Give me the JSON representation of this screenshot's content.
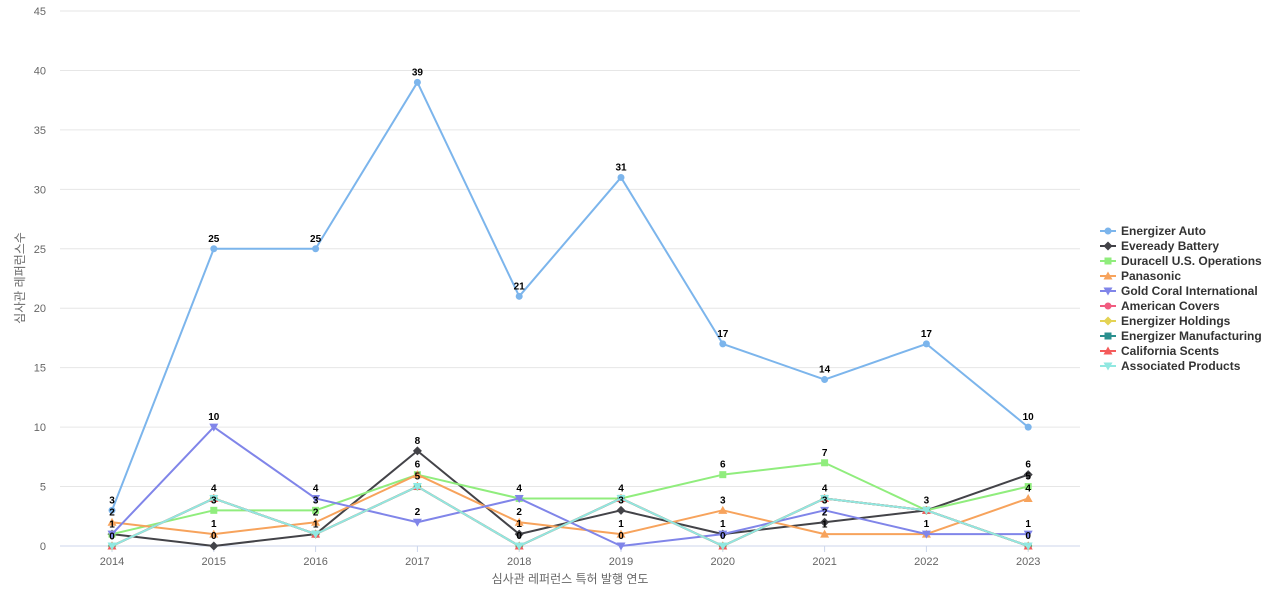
{
  "chart_data": {
    "type": "line",
    "xlabel": "심사관 레퍼런스 특허 발행 연도",
    "ylabel": "심사관 레퍼런스수",
    "x": [
      "2014",
      "2015",
      "2016",
      "2017",
      "2018",
      "2019",
      "2020",
      "2021",
      "2022",
      "2023"
    ],
    "ylim": [
      0,
      45
    ],
    "yticks": [
      0,
      5,
      10,
      15,
      20,
      25,
      30,
      35,
      40,
      45
    ],
    "grid": true,
    "legend_position": "right",
    "series": [
      {
        "name": "Energizer Auto",
        "color": "#7cb5ec",
        "marker": "circle",
        "values": [
          3,
          25,
          25,
          39,
          21,
          31,
          17,
          14,
          17,
          10
        ]
      },
      {
        "name": "Eveready Battery",
        "color": "#434348",
        "marker": "diamond",
        "values": [
          1,
          0,
          1,
          8,
          1,
          3,
          1,
          2,
          3,
          6
        ]
      },
      {
        "name": "Duracell U.S. Operations",
        "color": "#90ed7d",
        "marker": "square",
        "values": [
          1,
          3,
          3,
          6,
          4,
          4,
          6,
          7,
          3,
          5
        ]
      },
      {
        "name": "Panasonic",
        "color": "#f7a35c",
        "marker": "triangle",
        "values": [
          2,
          1,
          2,
          6,
          2,
          1,
          3,
          1,
          1,
          4
        ]
      },
      {
        "name": "Gold Coral International",
        "color": "#8085e9",
        "marker": "triangle-down",
        "values": [
          1,
          10,
          4,
          2,
          4,
          0,
          1,
          3,
          1,
          1
        ]
      },
      {
        "name": "American Covers",
        "color": "#f15c80",
        "marker": "circle",
        "values": [
          0,
          4,
          1,
          5,
          0,
          4,
          0,
          4,
          3,
          0
        ]
      },
      {
        "name": "Energizer Holdings",
        "color": "#e4d354",
        "marker": "diamond",
        "values": [
          0,
          4,
          1,
          5,
          0,
          4,
          0,
          4,
          3,
          0
        ]
      },
      {
        "name": "Energizer Manufacturing",
        "color": "#2b908f",
        "marker": "square",
        "values": [
          0,
          4,
          1,
          5,
          0,
          4,
          0,
          4,
          3,
          0
        ]
      },
      {
        "name": "California Scents",
        "color": "#f45b5b",
        "marker": "triangle",
        "values": [
          0,
          4,
          1,
          5,
          0,
          4,
          0,
          4,
          3,
          0
        ]
      },
      {
        "name": "Associated Products",
        "color": "#91e8e1",
        "marker": "triangle-down",
        "values": [
          0,
          4,
          1,
          5,
          0,
          4,
          0,
          4,
          3,
          0
        ]
      }
    ]
  }
}
